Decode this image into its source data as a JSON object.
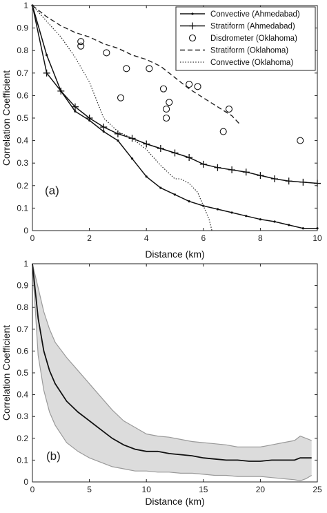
{
  "chart_data": [
    {
      "type": "line",
      "panel_label": "(a)",
      "xlabel": "Distance (km)",
      "ylabel": "Correlation Coefficient",
      "xlim": [
        0,
        10
      ],
      "ylim": [
        0,
        1
      ],
      "xticks": [
        0,
        2,
        4,
        6,
        8,
        10
      ],
      "yticks": [
        0,
        0.1,
        0.2,
        0.3,
        0.4,
        0.5,
        0.6,
        0.7,
        0.8,
        0.9,
        1
      ],
      "legend_position": "top-right",
      "grid": false,
      "series": [
        {
          "name": "Convective (Ahmedabad)",
          "style": "solid-dot",
          "x": [
            0,
            0.5,
            1,
            1.5,
            2,
            2.5,
            3,
            3.5,
            4,
            4.5,
            5,
            5.5,
            6,
            6.5,
            7,
            7.5,
            8,
            8.5,
            9,
            9.5,
            10
          ],
          "y": [
            1,
            0.78,
            0.62,
            0.53,
            0.49,
            0.44,
            0.4,
            0.32,
            0.24,
            0.19,
            0.16,
            0.13,
            0.11,
            0.095,
            0.08,
            0.065,
            0.05,
            0.04,
            0.025,
            0.01,
            0.01
          ]
        },
        {
          "name": "Stratiform (Ahmedabad)",
          "style": "solid-plus",
          "x": [
            0,
            0.5,
            1,
            1.5,
            2,
            2.5,
            3,
            3.5,
            4,
            4.5,
            5,
            5.5,
            6,
            6.5,
            7,
            7.5,
            8,
            8.5,
            9,
            9.5,
            10
          ],
          "y": [
            1,
            0.7,
            0.62,
            0.55,
            0.5,
            0.46,
            0.43,
            0.41,
            0.385,
            0.365,
            0.345,
            0.325,
            0.295,
            0.28,
            0.27,
            0.26,
            0.245,
            0.23,
            0.22,
            0.215,
            0.21
          ]
        },
        {
          "name": "Disdrometer (Oklahoma)",
          "style": "circle",
          "x": [
            1.7,
            1.7,
            2.6,
            3.3,
            3.1,
            4.1,
            4.6,
            4.7,
            4.7,
            4.8,
            5.5,
            5.8,
            6.9,
            6.7,
            9.4
          ],
          "y": [
            0.84,
            0.82,
            0.79,
            0.72,
            0.59,
            0.72,
            0.63,
            0.54,
            0.5,
            0.57,
            0.65,
            0.64,
            0.54,
            0.44,
            0.4
          ]
        },
        {
          "name": "Stratiform (Oklahoma)",
          "style": "dashed",
          "x": [
            0,
            0.5,
            1,
            1.5,
            2,
            2.5,
            3,
            3.5,
            4,
            4.5,
            5,
            5.5,
            6,
            6.5,
            7,
            7.3
          ],
          "y": [
            1,
            0.95,
            0.91,
            0.88,
            0.86,
            0.83,
            0.81,
            0.78,
            0.76,
            0.73,
            0.68,
            0.63,
            0.59,
            0.55,
            0.51,
            0.47
          ]
        },
        {
          "name": "Convective (Oklahoma)",
          "style": "dotted",
          "x": [
            0,
            0.5,
            1,
            1.5,
            2,
            2.5,
            3,
            3.5,
            4,
            4.5,
            5,
            5.2,
            5.5,
            5.8,
            6,
            6.2,
            6.3
          ],
          "y": [
            1,
            0.93,
            0.86,
            0.77,
            0.66,
            0.5,
            0.44,
            0.41,
            0.36,
            0.29,
            0.23,
            0.23,
            0.21,
            0.17,
            0.11,
            0.05,
            0
          ]
        }
      ]
    },
    {
      "type": "area",
      "panel_label": "(b)",
      "xlabel": "Distance (km)",
      "ylabel": "Correlation Coefficient",
      "xlim": [
        0,
        25
      ],
      "ylim": [
        0,
        1
      ],
      "xticks": [
        0,
        5,
        10,
        15,
        20,
        25
      ],
      "yticks": [
        0,
        0.1,
        0.2,
        0.3,
        0.4,
        0.5,
        0.6,
        0.7,
        0.8,
        0.9,
        1
      ],
      "grid": false,
      "band_color": "#dcdcdc",
      "band_edge_color": "#9a9a9a",
      "x": [
        0,
        0.5,
        1,
        1.5,
        2,
        3,
        4,
        5,
        6,
        7,
        8,
        9,
        10,
        11,
        12,
        13,
        14,
        15,
        16,
        17,
        18,
        19,
        20,
        21,
        22,
        23,
        23.5,
        24,
        24.5
      ],
      "mean": [
        1,
        0.75,
        0.6,
        0.51,
        0.45,
        0.37,
        0.32,
        0.28,
        0.24,
        0.2,
        0.17,
        0.15,
        0.14,
        0.14,
        0.13,
        0.125,
        0.12,
        0.11,
        0.105,
        0.1,
        0.1,
        0.095,
        0.095,
        0.1,
        0.1,
        0.1,
        0.11,
        0.11,
        0.11
      ],
      "upper": [
        1,
        0.89,
        0.78,
        0.7,
        0.64,
        0.57,
        0.51,
        0.45,
        0.39,
        0.33,
        0.28,
        0.25,
        0.22,
        0.21,
        0.205,
        0.195,
        0.185,
        0.18,
        0.175,
        0.17,
        0.16,
        0.16,
        0.16,
        0.17,
        0.18,
        0.19,
        0.21,
        0.2,
        0.19
      ],
      "lower": [
        1,
        0.58,
        0.42,
        0.32,
        0.26,
        0.18,
        0.14,
        0.11,
        0.09,
        0.07,
        0.06,
        0.05,
        0.05,
        0.045,
        0.045,
        0.04,
        0.04,
        0.035,
        0.03,
        0.03,
        0.025,
        0.025,
        0.025,
        0.02,
        0.015,
        0.01,
        0.005,
        0.015,
        0.03
      ]
    }
  ]
}
